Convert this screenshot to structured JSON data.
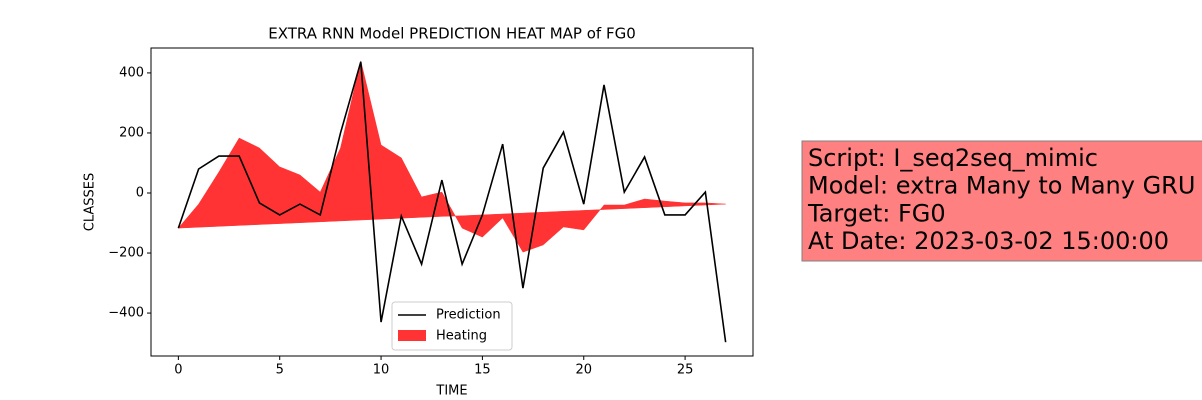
{
  "chart_data": {
    "type": "line",
    "title": "EXTRA RNN Model PREDICTION HEAT MAP of FG0",
    "xlabel": "TIME",
    "ylabel": "CLASSES",
    "x": [
      0,
      1,
      2,
      3,
      4,
      5,
      6,
      7,
      8,
      9,
      10,
      11,
      12,
      13,
      14,
      15,
      16,
      17,
      18,
      19,
      20,
      21,
      22,
      23,
      24,
      25,
      26,
      27
    ],
    "series": [
      {
        "name": "Prediction",
        "color": "#000000",
        "kind": "line",
        "values": [
          -117,
          80,
          123,
          123,
          -33,
          -73,
          -37,
          -73,
          200,
          437,
          -430,
          -77,
          -237,
          43,
          -237,
          -73,
          163,
          -317,
          83,
          203,
          -37,
          360,
          3,
          120,
          -73,
          -73,
          3,
          -497
        ]
      },
      {
        "name": "Heating",
        "color": "#ff3333",
        "kind": "fill",
        "values": [
          -117,
          -37,
          70,
          183,
          150,
          87,
          60,
          3,
          150,
          440,
          160,
          117,
          -13,
          3,
          -117,
          -147,
          -83,
          -197,
          -173,
          -113,
          -123,
          -40,
          -40,
          -20,
          -27,
          -33,
          -33,
          -37
        ],
        "lower": [
          -117,
          -114,
          -111,
          -108,
          -105,
          -102,
          -99,
          -96,
          -93,
          -90,
          -87,
          -84,
          -81,
          -78,
          -76,
          -73,
          -70,
          -67,
          -64,
          -61,
          -58,
          -55,
          -52,
          -49,
          -46,
          -43,
          -40,
          -37
        ]
      }
    ],
    "xlim": [
      -1.35,
      28.35
    ],
    "ylim": [
      -543,
      483
    ],
    "xticks": [
      0,
      5,
      10,
      15,
      20,
      25
    ],
    "yticks": [
      {
        "value": -400,
        "label": "−400"
      },
      {
        "value": -200,
        "label": "−200"
      },
      0,
      200,
      400
    ],
    "legend": "lower center",
    "annotation": {
      "lines": [
        "Script: I_seq2seq_mimic",
        "Model: extra Many to Many GRU",
        "Target: FG0",
        "At Date: 2023-03-02 15:00:00"
      ],
      "color": "#ff8080"
    }
  }
}
